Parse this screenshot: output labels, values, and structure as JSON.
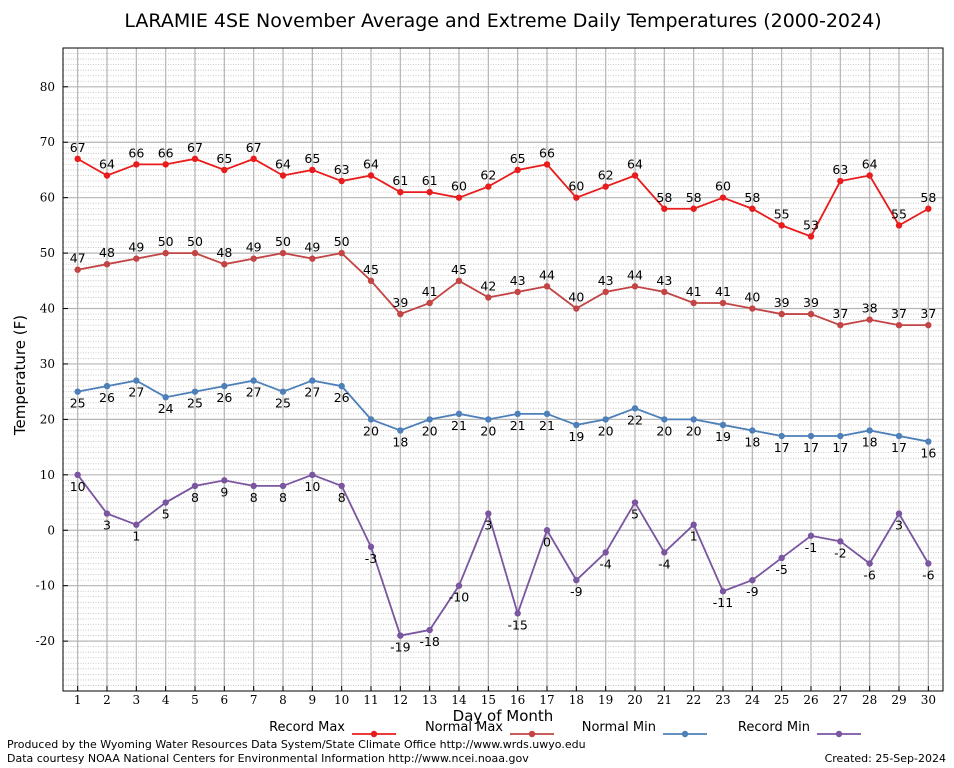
{
  "chart_data": {
    "type": "line",
    "title": "LARAMIE 4SE November Average and Extreme Daily Temperatures (2000-2024)",
    "xlabel": "Day of Month",
    "ylabel": "Temperature (F)",
    "xlim": [
      0.5,
      30.5
    ],
    "ylim": [
      -29,
      87
    ],
    "yticks": [
      -20,
      -10,
      0,
      10,
      20,
      30,
      40,
      50,
      60,
      70,
      80
    ],
    "x": [
      1,
      2,
      3,
      4,
      5,
      6,
      7,
      8,
      9,
      10,
      11,
      12,
      13,
      14,
      15,
      16,
      17,
      18,
      19,
      20,
      21,
      22,
      23,
      24,
      25,
      26,
      27,
      28,
      29,
      30
    ],
    "grid": true,
    "legend_position": "bottom",
    "series": [
      {
        "name": "Record Max",
        "color": "#e81c1c",
        "label_pos": "above",
        "values": [
          67,
          64,
          66,
          66,
          67,
          65,
          67,
          64,
          65,
          63,
          64,
          61,
          61,
          60,
          62,
          65,
          66,
          60,
          62,
          64,
          58,
          58,
          60,
          58,
          55,
          53,
          63,
          64,
          55,
          58
        ]
      },
      {
        "name": "Normal Max",
        "color": "#c24444",
        "label_pos": "above",
        "values": [
          47,
          48,
          49,
          50,
          50,
          48,
          49,
          50,
          49,
          50,
          45,
          39,
          41,
          45,
          42,
          43,
          44,
          40,
          43,
          44,
          43,
          41,
          41,
          40,
          39,
          39,
          37,
          38,
          37,
          37
        ]
      },
      {
        "name": "Normal Min",
        "color": "#4d7fb8",
        "label_pos": "below",
        "values": [
          25,
          26,
          27,
          24,
          25,
          26,
          27,
          25,
          27,
          26,
          20,
          18,
          20,
          21,
          20,
          21,
          21,
          19,
          20,
          22,
          20,
          20,
          19,
          18,
          17,
          17,
          17,
          18,
          17,
          16
        ]
      },
      {
        "name": "Record Min",
        "color": "#7a55a0",
        "label_pos": "below",
        "values": [
          10,
          3,
          1,
          5,
          8,
          9,
          8,
          8,
          10,
          8,
          -3,
          -19,
          -18,
          -10,
          3,
          -15,
          0,
          -9,
          -4,
          5,
          -4,
          1,
          -11,
          -9,
          -5,
          -1,
          -2,
          -6,
          3,
          -6
        ]
      }
    ]
  },
  "footer": {
    "produced_by": "Produced by the Wyoming Water Resources Data System/State Climate Office http://www.wrds.uwyo.edu",
    "data_courtesy": "Data courtesy NOAA National Centers for Environmental Information http://www.ncei.noaa.gov",
    "created": "Created: 25-Sep-2024"
  }
}
